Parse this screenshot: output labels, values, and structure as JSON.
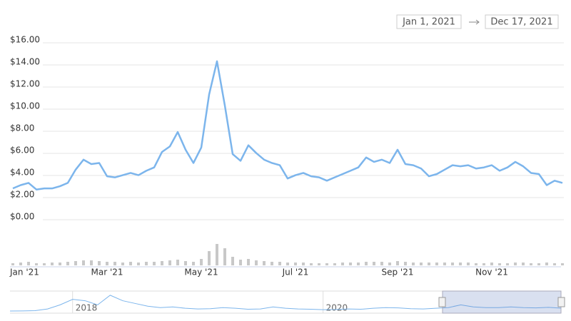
{
  "range_selector": {
    "from": "Jan 1, 2021",
    "to": "Dec 17, 2021"
  },
  "chart_data": [
    {
      "type": "line",
      "color": "#7cb5ec",
      "grid": true,
      "categories": [
        "Jan '21",
        null,
        null,
        null,
        null,
        null,
        null,
        null,
        null,
        null,
        null,
        null,
        "Mar '21",
        null,
        null,
        null,
        null,
        null,
        null,
        null,
        null,
        null,
        null,
        null,
        "May '21",
        null,
        null,
        null,
        null,
        null,
        null,
        null,
        null,
        null,
        null,
        null,
        "Jul '21",
        null,
        null,
        null,
        null,
        null,
        null,
        null,
        null,
        null,
        null,
        null,
        null,
        "Sep '21",
        null,
        null,
        null,
        null,
        null,
        null,
        null,
        null,
        null,
        null,
        null,
        "Nov '21",
        null,
        null,
        null,
        null,
        null,
        null,
        null,
        null,
        null
      ],
      "values": [
        2.7,
        3.0,
        3.2,
        2.6,
        2.7,
        2.7,
        2.9,
        3.2,
        4.4,
        5.3,
        4.9,
        5.0,
        3.8,
        3.7,
        3.9,
        4.1,
        3.9,
        4.3,
        4.6,
        6.0,
        6.5,
        7.8,
        6.2,
        5.0,
        6.4,
        11.2,
        14.2,
        10.2,
        5.8,
        5.2,
        6.6,
        5.9,
        5.3,
        5.0,
        4.8,
        3.6,
        3.9,
        4.1,
        3.8,
        3.7,
        3.4,
        3.7,
        4.0,
        4.3,
        4.6,
        5.5,
        5.1,
        5.3,
        5.0,
        6.2,
        4.9,
        4.8,
        4.5,
        3.8,
        4.0,
        4.4,
        4.8,
        4.7,
        4.8,
        4.5,
        4.6,
        4.8,
        4.3,
        4.6,
        5.1,
        4.7,
        4.1,
        4.0,
        3.0,
        3.4,
        3.2
      ],
      "ylim": [
        0,
        16
      ],
      "yticks": [
        {
          "value": 0,
          "label": "$0.00"
        },
        {
          "value": 2,
          "label": "$2.00"
        },
        {
          "value": 4,
          "label": "$4.00"
        },
        {
          "value": 6,
          "label": "$6.00"
        },
        {
          "value": 8,
          "label": "$8.00"
        },
        {
          "value": 10,
          "label": "$10.00"
        },
        {
          "value": 12,
          "label": "$12.00"
        },
        {
          "value": 14,
          "label": "$14.00"
        },
        {
          "value": 16,
          "label": "$16.00"
        }
      ]
    },
    {
      "type": "bar",
      "color": "#c8c8c8",
      "values": [
        3,
        4,
        5,
        3,
        3,
        4,
        4,
        5,
        6,
        7,
        7,
        6,
        5,
        5,
        4,
        5,
        4,
        5,
        5,
        6,
        7,
        8,
        6,
        5,
        9,
        20,
        30,
        24,
        12,
        8,
        9,
        7,
        6,
        5,
        5,
        4,
        4,
        4,
        3,
        3,
        3,
        3,
        4,
        4,
        4,
        5,
        5,
        5,
        4,
        6,
        5,
        4,
        4,
        4,
        4,
        4,
        4,
        4,
        4,
        3,
        3,
        4,
        3,
        3,
        4,
        4,
        3,
        3,
        4,
        3,
        3
      ],
      "ylim": [
        0,
        30
      ]
    },
    {
      "type": "line",
      "color": "#7cb5ec",
      "categories": [
        null,
        null,
        null,
        null,
        null,
        "2018",
        null,
        null,
        null,
        null,
        null,
        null,
        null,
        null,
        null,
        null,
        null,
        null,
        null,
        null,
        null,
        null,
        null,
        null,
        null,
        "2020",
        null,
        null,
        null,
        null,
        null,
        null,
        null,
        null,
        null,
        null,
        null,
        null,
        null,
        null,
        null,
        null,
        null,
        null,
        null
      ],
      "values": [
        0.5,
        0.6,
        0.8,
        2,
        5,
        9,
        8,
        5,
        12,
        8,
        6,
        4,
        3,
        3.5,
        2.5,
        2,
        2.2,
        3,
        2.5,
        1.8,
        2,
        3.5,
        2.5,
        2,
        1.8,
        1.5,
        1.6,
        2,
        1.8,
        2.5,
        3,
        2.8,
        2.2,
        2,
        2.5,
        3,
        5,
        3.5,
        3,
        3,
        3.5,
        3,
        2.8,
        3.2,
        2.6
      ],
      "ylim": [
        0,
        14
      ]
    }
  ]
}
